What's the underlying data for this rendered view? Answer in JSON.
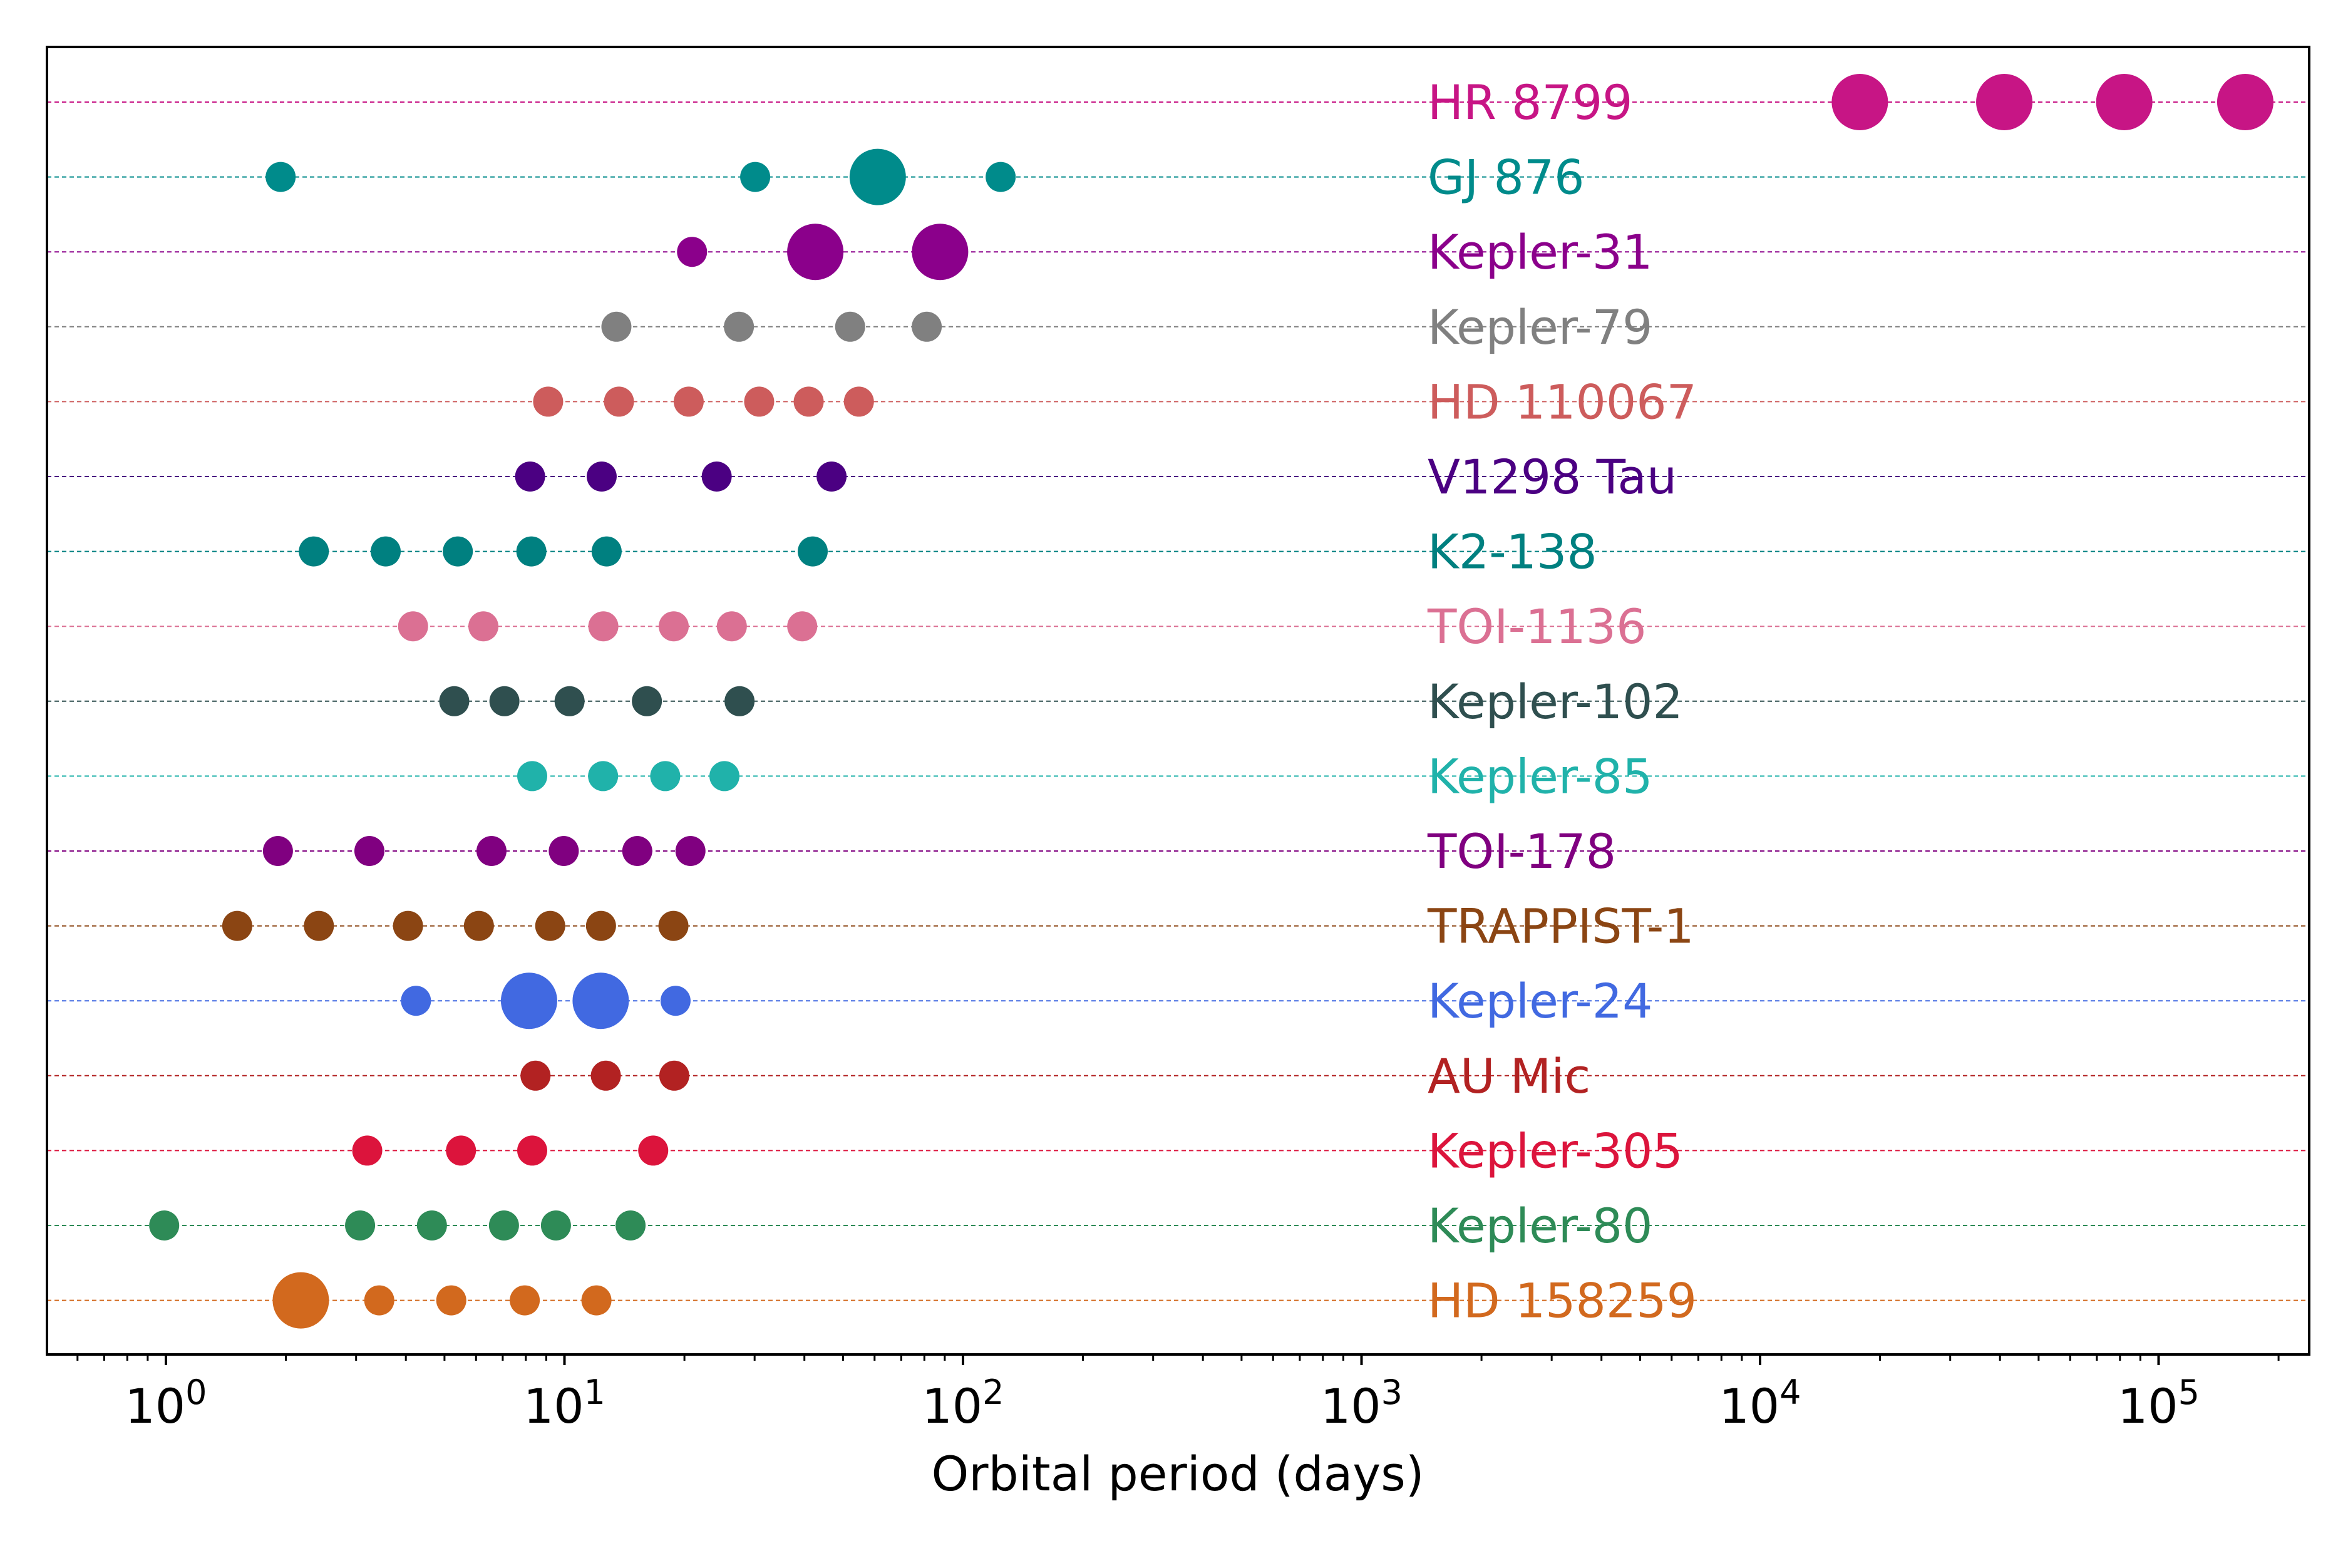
{
  "chart_data": {
    "type": "scatter",
    "title": "",
    "xlabel": "Orbital period (days)",
    "ylabel": "",
    "xscale": "log",
    "xlim": [
      0.5,
      250000
    ],
    "grid": "horizontal dashed line per system",
    "legend": "none; system names printed beside each row",
    "x_tick_labels": [
      {
        "base": "10",
        "exp": "0",
        "value": 1
      },
      {
        "base": "10",
        "exp": "1",
        "value": 10
      },
      {
        "base": "10",
        "exp": "2",
        "value": 100
      },
      {
        "base": "10",
        "exp": "3",
        "value": 1000
      },
      {
        "base": "10",
        "exp": "4",
        "value": 10000
      },
      {
        "base": "10",
        "exp": "5",
        "value": 100000
      }
    ],
    "series": [
      {
        "name": "HR 8799",
        "color": "#c71585",
        "periods": [
          17800,
          41000,
          82000,
          165000
        ],
        "marker_size": [
          "large",
          "large",
          "large",
          "large"
        ]
      },
      {
        "name": "GJ 876",
        "color": "#008b8b",
        "periods": [
          1.94,
          30.1,
          61.1,
          124.3
        ],
        "marker_size": [
          "small",
          "small",
          "large",
          "small"
        ]
      },
      {
        "name": "Kepler-31",
        "color": "#8b008b",
        "periods": [
          20.9,
          42.6,
          87.6
        ],
        "marker_size": [
          "small",
          "large",
          "large"
        ]
      },
      {
        "name": "Kepler-79",
        "color": "#808080",
        "periods": [
          13.5,
          27.4,
          52.1,
          81.1
        ],
        "marker_size": [
          "small",
          "small",
          "small",
          "small"
        ]
      },
      {
        "name": "HD 110067",
        "color": "#cd5c5c",
        "periods": [
          9.1,
          13.7,
          20.5,
          30.8,
          41.0,
          54.8
        ],
        "marker_size": [
          "small",
          "small",
          "small",
          "small",
          "small",
          "small"
        ]
      },
      {
        "name": "V1298 Tau",
        "color": "#4b0082",
        "periods": [
          8.2,
          12.4,
          24.1,
          46.8
        ],
        "marker_size": [
          "small",
          "small",
          "small",
          "small"
        ]
      },
      {
        "name": "K2-138",
        "color": "#008080",
        "periods": [
          2.35,
          3.56,
          5.4,
          8.26,
          12.76,
          41.97
        ],
        "marker_size": [
          "small",
          "small",
          "small",
          "small",
          "small",
          "small"
        ]
      },
      {
        "name": "TOI-1136",
        "color": "#db7093",
        "periods": [
          4.17,
          6.26,
          12.52,
          18.8,
          26.3,
          39.5
        ],
        "marker_size": [
          "small",
          "small",
          "small",
          "small",
          "small",
          "small"
        ]
      },
      {
        "name": "Kepler-102",
        "color": "#2f4f4f",
        "periods": [
          5.29,
          7.07,
          10.3,
          16.1,
          27.5
        ],
        "marker_size": [
          "small",
          "small",
          "small",
          "small",
          "small"
        ]
      },
      {
        "name": "Kepler-85",
        "color": "#20b2aa",
        "periods": [
          8.3,
          12.5,
          17.9,
          25.2
        ],
        "marker_size": [
          "small",
          "small",
          "small",
          "small"
        ]
      },
      {
        "name": "TOI-178",
        "color": "#800080",
        "periods": [
          1.91,
          3.24,
          6.56,
          9.96,
          15.23,
          20.71
        ],
        "marker_size": [
          "small",
          "small",
          "small",
          "small",
          "small",
          "small"
        ]
      },
      {
        "name": "TRAPPIST-1",
        "color": "#8b4513",
        "periods": [
          1.51,
          2.42,
          4.05,
          6.1,
          9.21,
          12.35,
          18.77
        ],
        "marker_size": [
          "small",
          "small",
          "small",
          "small",
          "small",
          "small",
          "small"
        ]
      },
      {
        "name": "Kepler-24",
        "color": "#4169e1",
        "periods": [
          4.24,
          8.15,
          12.33,
          19.0
        ],
        "marker_size": [
          "small",
          "large",
          "large",
          "small"
        ]
      },
      {
        "name": "AU Mic",
        "color": "#b22222",
        "periods": [
          8.46,
          12.7,
          18.86
        ],
        "marker_size": [
          "small",
          "small",
          "small"
        ]
      },
      {
        "name": "Kepler-305",
        "color": "#dc143c",
        "periods": [
          3.2,
          5.5,
          8.3,
          16.7
        ],
        "marker_size": [
          "small",
          "small",
          "small",
          "small"
        ]
      },
      {
        "name": "Kepler-80",
        "color": "#2e8b57",
        "periods": [
          0.99,
          3.07,
          4.65,
          7.05,
          9.52,
          14.65
        ],
        "marker_size": [
          "small",
          "small",
          "small",
          "small",
          "small",
          "small"
        ]
      },
      {
        "name": "HD 158259",
        "color": "#d2691e",
        "periods": [
          2.18,
          3.43,
          5.2,
          7.95,
          12.03
        ],
        "marker_size": [
          "large",
          "small",
          "small",
          "small",
          "small"
        ]
      }
    ]
  }
}
